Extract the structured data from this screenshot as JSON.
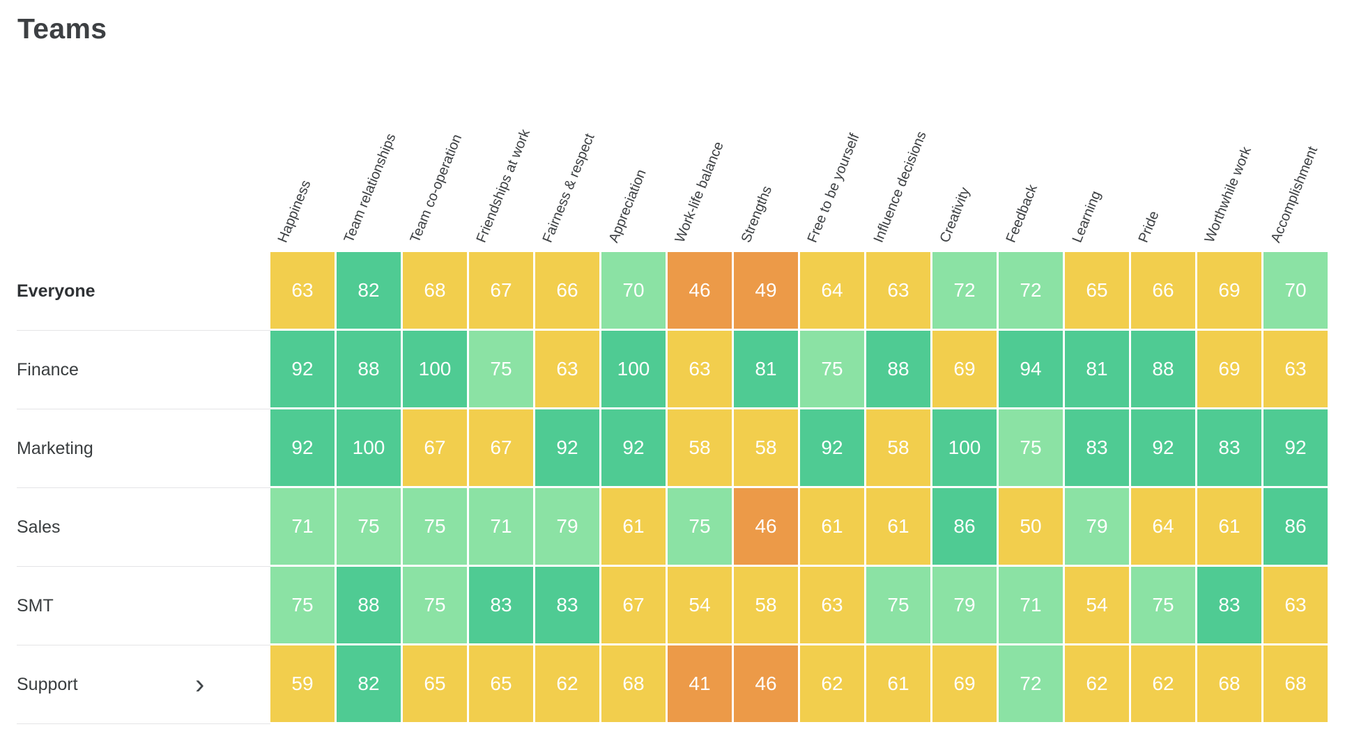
{
  "page": {
    "title": "Teams"
  },
  "icons": {
    "support_chevron_glyph": "›",
    "support_chevron_name": "chevron-right-icon"
  },
  "colors": {
    "background": "#FFFFFF",
    "title_text": "#3D4043",
    "header_text": "#3D4043",
    "row_label_text": "#393D3F",
    "cell_text": "#FFFFFF",
    "divider": "#E4E4E6",
    "orange": "#EC9A48",
    "yellow": "#F2CE4D",
    "light_green": "#8BE2A4",
    "green": "#4FCB93"
  },
  "chart_data": {
    "type": "heatmap",
    "title": "Teams",
    "value_range": [
      0,
      100
    ],
    "legend_position": "none",
    "grid": "white-gaps-between-cells",
    "color_scale": [
      {
        "max": 49,
        "name": "orange",
        "color": "#EC9A48"
      },
      {
        "max": 69,
        "name": "yellow",
        "color": "#F2CE4D"
      },
      {
        "max": 79,
        "name": "light-green",
        "color": "#8BE2A4"
      },
      {
        "max": 100,
        "name": "green",
        "color": "#4FCB93"
      }
    ],
    "categories": [
      "Happiness",
      "Team relationships",
      "Team co-operation",
      "Friendships at work",
      "Fairness & respect",
      "Appreciation",
      "Work-life balance",
      "Strengths",
      "Free to be yourself",
      "Influence decisions",
      "Creativity",
      "Feedback",
      "Learning",
      "Pride",
      "Worthwhile work",
      "Accomplishment"
    ],
    "rows": [
      {
        "label": "Everyone",
        "bold": true,
        "has_chevron": false,
        "values": [
          63,
          82,
          68,
          67,
          66,
          70,
          46,
          49,
          64,
          63,
          72,
          72,
          65,
          66,
          69,
          70
        ]
      },
      {
        "label": "Finance",
        "bold": false,
        "has_chevron": false,
        "values": [
          92,
          88,
          100,
          75,
          63,
          100,
          63,
          81,
          75,
          88,
          69,
          94,
          81,
          88,
          69,
          63
        ]
      },
      {
        "label": "Marketing",
        "bold": false,
        "has_chevron": false,
        "values": [
          92,
          100,
          67,
          67,
          92,
          92,
          58,
          58,
          92,
          58,
          100,
          75,
          83,
          92,
          83,
          92
        ]
      },
      {
        "label": "Sales",
        "bold": false,
        "has_chevron": false,
        "values": [
          71,
          75,
          75,
          71,
          79,
          61,
          75,
          46,
          61,
          61,
          86,
          50,
          79,
          64,
          61,
          86
        ]
      },
      {
        "label": "SMT",
        "bold": false,
        "has_chevron": false,
        "values": [
          75,
          88,
          75,
          83,
          83,
          67,
          54,
          58,
          63,
          75,
          79,
          71,
          54,
          75,
          83,
          63
        ]
      },
      {
        "label": "Support",
        "bold": false,
        "has_chevron": true,
        "values": [
          59,
          82,
          65,
          65,
          62,
          68,
          41,
          46,
          62,
          61,
          69,
          72,
          62,
          62,
          68,
          68
        ]
      }
    ]
  }
}
